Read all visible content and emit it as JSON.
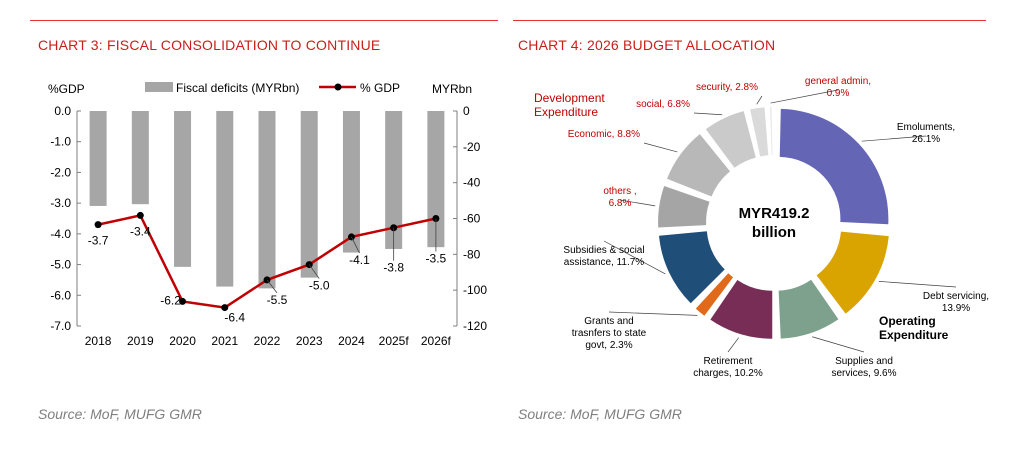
{
  "chart3": {
    "title": "CHART 3: FISCAL CONSOLIDATION TO CONTINUE",
    "source": "Source: MoF, MUFG GMR",
    "left_axis_label": "%GDP",
    "right_axis_label": "MYRbn",
    "legend_bar": "Fiscal deficits (MYRbn)",
    "legend_line": "% GDP",
    "colors": {
      "bar": "#a6a6a6",
      "line": "#c00000",
      "marker": "#000000"
    }
  },
  "chart4": {
    "title": "CHART 4: 2026 BUDGET ALLOCATION",
    "source": "Source: MoF, MUFG GMR",
    "center_line1": "MYR419.2",
    "center_line2": "billion",
    "group_dev": [
      "Development",
      "Expenditure"
    ],
    "group_op": [
      "Operating",
      "Expenditure"
    ],
    "colors": {
      "dev_text": "#c00000",
      "op_text": "#000000"
    }
  },
  "chart_data": [
    {
      "type": "bar+line",
      "title": "CHART 3: FISCAL CONSOLIDATION TO CONTINUE",
      "categories": [
        "2018",
        "2019",
        "2020",
        "2021",
        "2022",
        "2023",
        "2024",
        "2025f",
        "2026f"
      ],
      "series": [
        {
          "name": "Fiscal deficits (MYRbn)",
          "axis": "right",
          "type": "bar",
          "values": [
            -53,
            -52,
            -87,
            -98,
            -99,
            -93,
            -79,
            -77,
            -76
          ]
        },
        {
          "name": "% GDP",
          "axis": "left",
          "type": "line",
          "values": [
            -3.7,
            -3.4,
            -6.2,
            -6.4,
            -5.5,
            -5.0,
            -4.1,
            -3.8,
            -3.5
          ]
        }
      ],
      "data_labels": [
        "-3.7",
        "-3.4",
        "-6.2",
        "-6.4",
        "-5.5",
        "-5.0",
        "-4.1",
        "-3.8",
        "-3.5"
      ],
      "ylabel_left": "%GDP",
      "ylabel_right": "MYRbn",
      "ylim_left": [
        -7.0,
        0.0
      ],
      "ylim_right": [
        -120,
        0
      ],
      "yticks_left": [
        "0.0",
        "-1.0",
        "-2.0",
        "-3.0",
        "-4.0",
        "-5.0",
        "-6.0",
        "-7.0"
      ],
      "yticks_right": [
        "0",
        "-20",
        "-40",
        "-60",
        "-80",
        "-100",
        "-120"
      ],
      "legend_position": "top",
      "grid": false
    },
    {
      "type": "pie",
      "title": "CHART 4: 2026 BUDGET ALLOCATION",
      "slices": [
        {
          "label": "Emoluments,",
          "pct_label": "26.1%",
          "value": 26.1,
          "group": "op",
          "color": "#6466b5"
        },
        {
          "label": "Debt servicing,",
          "pct_label": "13.9%",
          "value": 13.9,
          "group": "op",
          "color": "#d9a300"
        },
        {
          "label": "Supplies and",
          "label2": "services,",
          "pct_label": "9.6%",
          "value": 9.6,
          "group": "op",
          "color": "#7da18c"
        },
        {
          "label": "Retirement",
          "label2": "charges,",
          "pct_label": "10.2%",
          "value": 10.2,
          "group": "op",
          "color": "#772d56"
        },
        {
          "label": "Grants and",
          "label2": "trasnfers to state",
          "label3": "govt,",
          "pct_label": "2.3%",
          "value": 2.3,
          "group": "op",
          "color": "#e06a1a"
        },
        {
          "label": "Subsidies & social",
          "label2": "assistance,",
          "pct_label": "11.7%",
          "value": 11.7,
          "group": "op",
          "color": "#1f4e79"
        },
        {
          "label": "others ,",
          "pct_label": "6.8%",
          "value": 6.8,
          "group": "dev",
          "color": "#a5a5a5"
        },
        {
          "label": "Economic,",
          "pct_label": "8.8%",
          "value": 8.8,
          "group": "dev",
          "color": "#b8b8b8"
        },
        {
          "label": "social,",
          "pct_label": "6.8%",
          "value": 6.8,
          "group": "dev",
          "color": "#cacaca"
        },
        {
          "label": "security,",
          "pct_label": "2.8%",
          "value": 2.8,
          "group": "dev",
          "color": "#dadada"
        },
        {
          "label": "general admin,",
          "pct_label": "0.9%",
          "value": 0.9,
          "group": "dev",
          "color": "#e8e8e8"
        }
      ],
      "center_text": "MYR419.2 billion"
    }
  ]
}
